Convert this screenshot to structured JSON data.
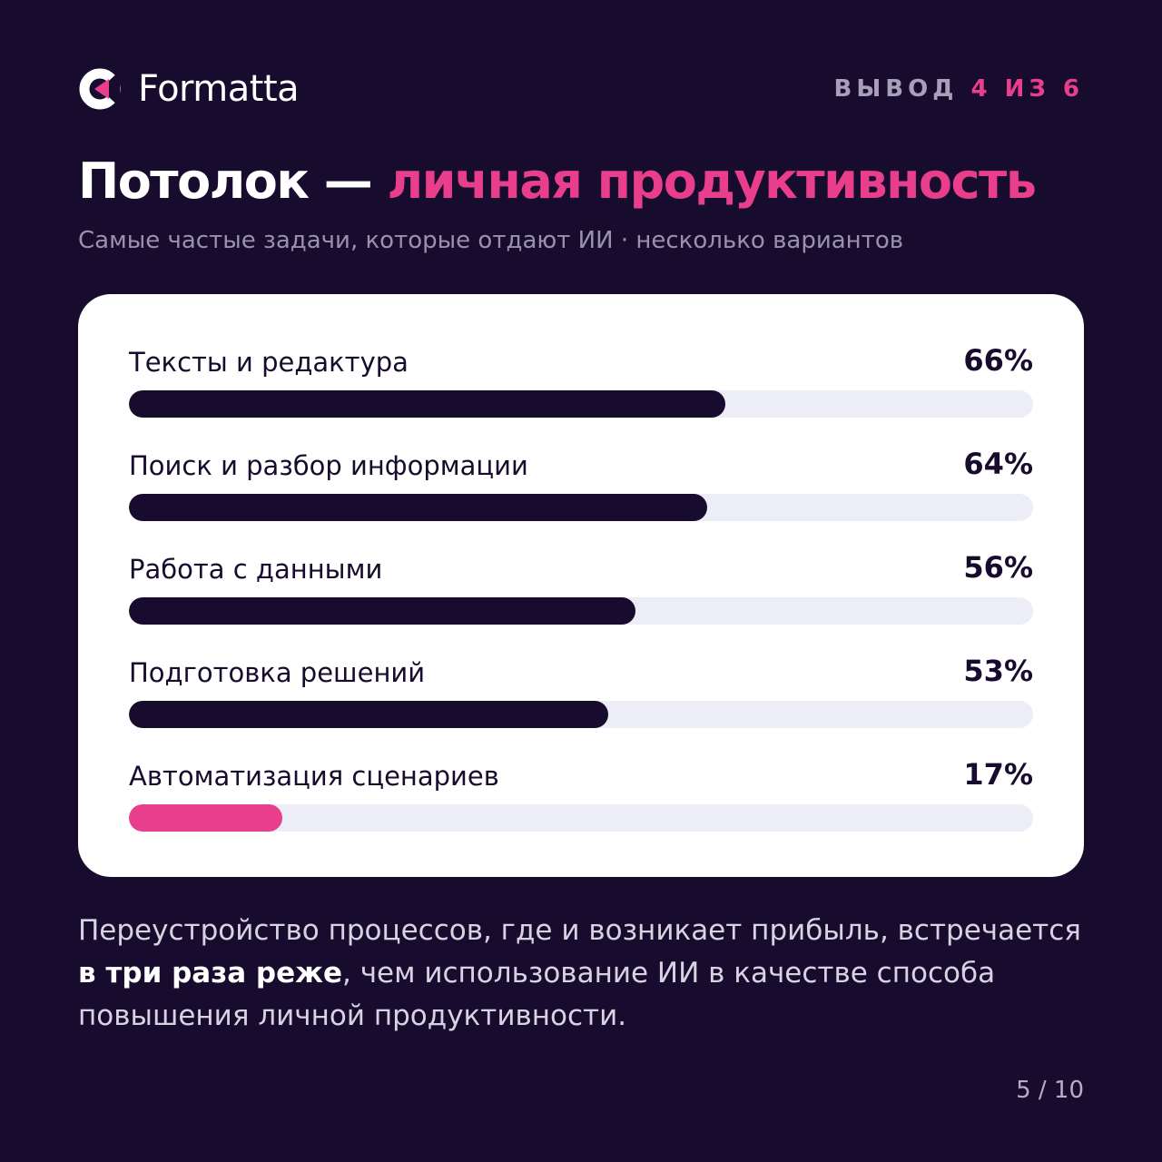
{
  "brand": {
    "name": "Formatta",
    "icon": "formatta-logo-icon"
  },
  "step": {
    "label": "ВЫВОД",
    "current": "4",
    "separator": "ИЗ",
    "total": "6"
  },
  "title": {
    "main": "Потолок — ",
    "accent": "личная продуктивность"
  },
  "subtitle": "Самые частые задачи, которые отдают ИИ · несколько вариантов",
  "chart_data": {
    "type": "bar",
    "orientation": "horizontal",
    "categories": [
      "Тексты и редактура",
      "Поиск и разбор информации",
      "Работа с данными",
      "Подготовка решений",
      "Автоматизация сценариев"
    ],
    "values": [
      66,
      64,
      56,
      53,
      17
    ],
    "value_labels": [
      "66%",
      "64%",
      "56%",
      "53%",
      "17%"
    ],
    "xlim": [
      0,
      100
    ],
    "highlight_index": 4,
    "colors": {
      "bar": "#170c2e",
      "highlight": "#e83e8c",
      "track": "#ecedf7"
    }
  },
  "footer": {
    "part1": "Переустройство процессов, где и возникает прибыль, встречается ",
    "bold": "в три раза реже",
    "part2": ", чем использование ИИ в качестве способа повышения личной продуктивности."
  },
  "pager": "5 / 10",
  "colors": {
    "background": "#170c2e",
    "accent": "#e83e8c",
    "card": "#ffffff"
  }
}
